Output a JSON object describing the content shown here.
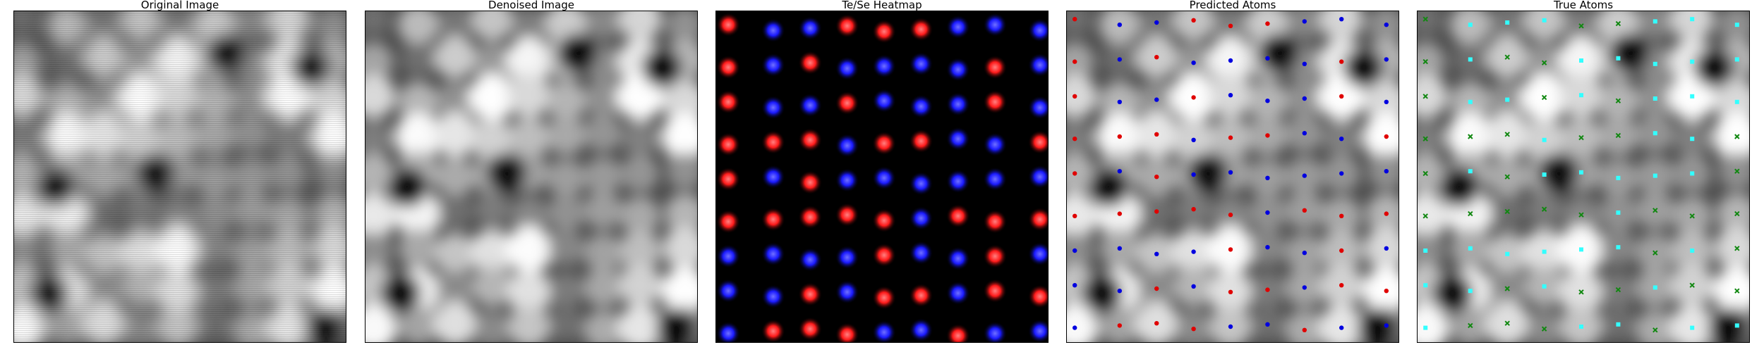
{
  "figure": {
    "panels": [
      {
        "id": "original",
        "title": "Original Image"
      },
      {
        "id": "denoised",
        "title": "Denoised Image"
      },
      {
        "id": "heatmap",
        "title": "Te/Se Heatmap"
      },
      {
        "id": "predicted",
        "title": "Predicted Atoms"
      },
      {
        "id": "true",
        "title": "True Atoms"
      }
    ]
  },
  "colors": {
    "te": "#ff1a1a",
    "se": "#1a1aff",
    "predicted_te": "#e00000",
    "predicted_se": "#0000e0",
    "true_primary": "#33ffff",
    "true_secondary": "#118811",
    "heatmap_background": "#000000"
  },
  "lattice": {
    "rows": 9,
    "cols": 9,
    "species_grid": [
      "RBBRRRBBB",
      "RBRBBBBRB",
      "RBBRBBBRB",
      "RRRBRRBBR",
      "RBRBBBBBB",
      "RRRRRBRRR",
      "BBBBRBBRB",
      "BBRBRRBRR",
      "BRRRBBRBB"
    ],
    "true_marker_grid": [
      "GCCCGGCCC",
      "GCGGCCCCC",
      "GCCGCGCCC",
      "GGGCGGCCG",
      "GCGCCCCCG",
      "GGGGGCGGG",
      "CCCCCCGCG",
      "CCGCGGCGG",
      "CGGGCCGCC"
    ]
  }
}
